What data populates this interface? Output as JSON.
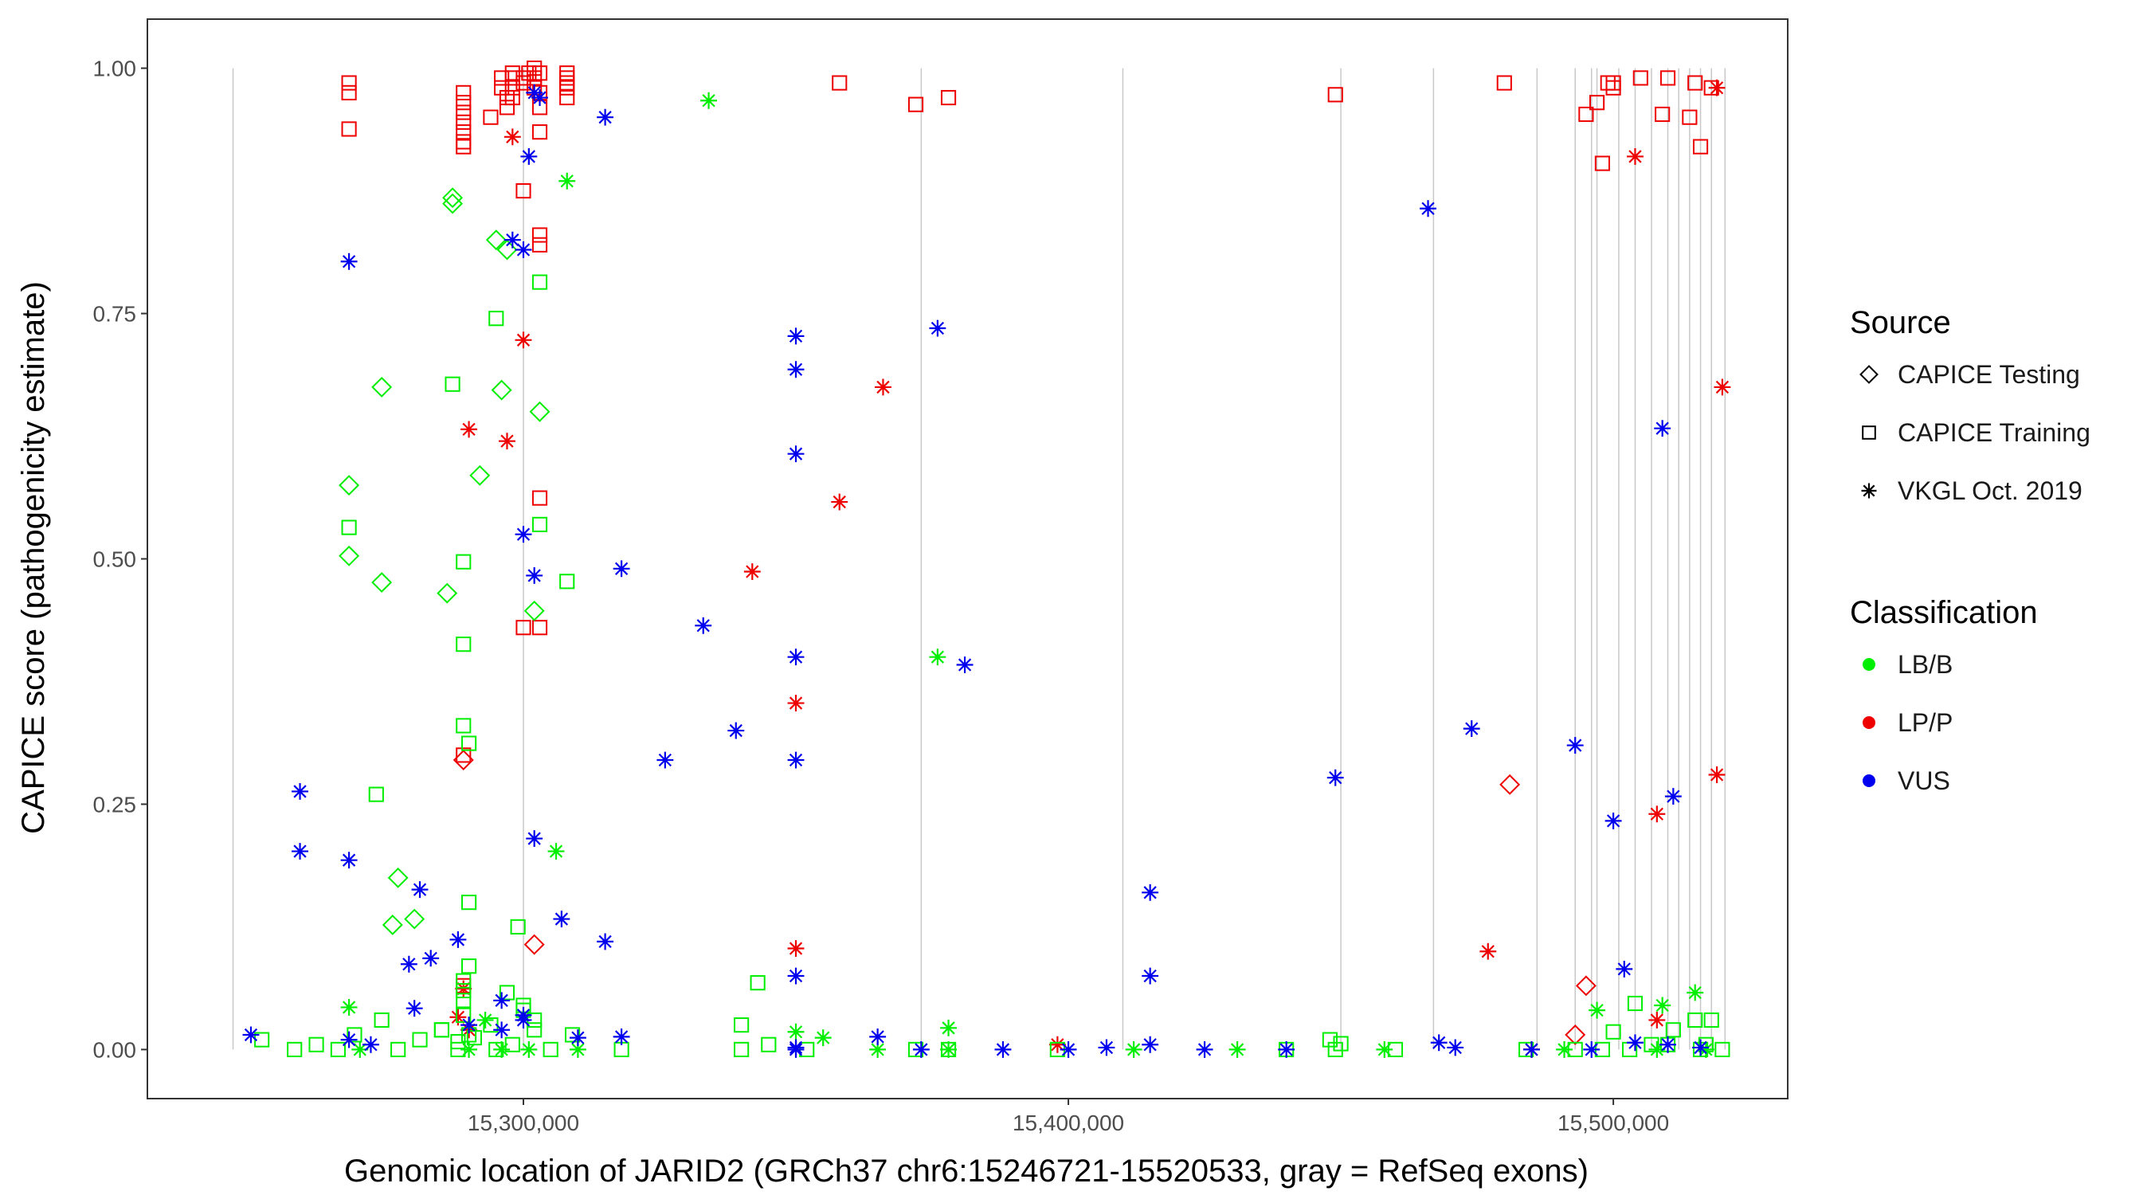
{
  "chart_data": {
    "type": "scatter",
    "title": "",
    "xlabel": "Genomic location of JARID2 (GRCh37 chr6:15246721-15520533, gray = RefSeq exons)",
    "ylabel": "CAPICE score (pathogenicity estimate)",
    "xlim": [
      15231000,
      15532000
    ],
    "ylim": [
      -0.05,
      1.05
    ],
    "x_ticks": [
      15300000,
      15400000,
      15500000
    ],
    "x_tick_labels": [
      "15,300,000",
      "15,400,000",
      "15,500,000"
    ],
    "y_ticks": [
      0,
      0.25,
      0.5,
      0.75,
      1.0
    ],
    "y_tick_labels": [
      "0.00",
      "0.25",
      "0.50",
      "0.75",
      "1.00"
    ],
    "exon_positions": [
      15246721,
      15300000,
      15373000,
      15410000,
      15450000,
      15467000,
      15486000,
      15493000,
      15496000,
      15497000,
      15501000,
      15504000,
      15507000,
      15510000,
      15512000,
      15514000,
      15516000,
      15518000,
      15520500
    ],
    "legend": {
      "source_title": "Source",
      "source_items": [
        {
          "label": "CAPICE Testing",
          "shape": "diamond"
        },
        {
          "label": "CAPICE Training",
          "shape": "square"
        },
        {
          "label": "VKGL Oct. 2019",
          "shape": "asterisk"
        }
      ],
      "class_title": "Classification",
      "class_items": [
        {
          "label": "LB/B",
          "color": "#00ee00"
        },
        {
          "label": "LP/P",
          "color": "#ee0000"
        },
        {
          "label": "VUS",
          "color": "#0000ee"
        }
      ]
    },
    "colors": {
      "LB/B": "#00ee00",
      "LP/P": "#ee0000",
      "VUS": "#0000ee"
    },
    "series": [
      {
        "name": "LP/P - CAPICE Training",
        "shape": "square",
        "cls": "LP/P",
        "x": [
          15268000,
          15268000,
          15268000,
          15289000,
          15289000,
          15289000,
          15289000,
          15289000,
          15289000,
          15289000,
          15294000,
          15296000,
          15296000,
          15297000,
          15297000,
          15298000,
          15298000,
          15298000,
          15300000,
          15300000,
          15301000,
          15302000,
          15302000,
          15302000,
          15303000,
          15303000,
          15303000,
          15308000,
          15308000,
          15308000,
          15308000,
          15308000,
          15358000,
          15372000,
          15378000,
          15449000,
          15480000,
          15495000,
          15497000,
          15498000,
          15499000,
          15500000,
          15500000,
          15505000,
          15509000,
          15510000,
          15514000,
          15515000,
          15516000,
          15518000,
          15298000,
          15300000,
          15303000,
          15303000,
          15303000,
          15300000,
          15303000,
          15289000,
          15303000,
          15289000
        ],
        "y": [
          0.985,
          0.975,
          0.938,
          0.975,
          0.965,
          0.955,
          0.945,
          0.935,
          0.925,
          0.92,
          0.95,
          0.99,
          0.98,
          0.97,
          0.96,
          0.995,
          0.99,
          0.98,
          0.99,
          0.985,
          0.995,
          1.0,
          0.99,
          0.98,
          0.995,
          0.975,
          0.96,
          0.995,
          0.99,
          0.985,
          0.98,
          0.97,
          0.985,
          0.963,
          0.97,
          0.973,
          0.985,
          0.953,
          0.965,
          0.903,
          0.985,
          0.985,
          0.98,
          0.99,
          0.953,
          0.99,
          0.95,
          0.985,
          0.92,
          0.98,
          0.97,
          0.875,
          0.935,
          0.83,
          0.82,
          0.43,
          0.43,
          0.3,
          0.562,
          0.065
        ]
      },
      {
        "name": "LP/P - CAPICE Testing",
        "shape": "diamond",
        "cls": "LP/P",
        "x": [
          15289000,
          15302000,
          15481000,
          15495000,
          15493000
        ],
        "y": [
          0.295,
          0.107,
          0.27,
          0.065,
          0.015
        ]
      },
      {
        "name": "LP/P - VKGL Oct. 2019",
        "shape": "asterisk",
        "cls": "LP/P",
        "x": [
          15298000,
          15300000,
          15290000,
          15297000,
          15288000,
          15289000,
          15342000,
          15350000,
          15350000,
          15358000,
          15366000,
          15398000,
          15504000,
          15520000,
          15519000,
          15508000,
          15519000,
          15477000,
          15485000,
          15508000,
          15290000
        ],
        "y": [
          0.93,
          0.723,
          0.632,
          0.62,
          0.033,
          0.062,
          0.487,
          0.353,
          0.103,
          0.558,
          0.675,
          0.005,
          0.91,
          0.675,
          0.28,
          0.03,
          0.98,
          0.1,
          0.0,
          0.24,
          0.02
        ]
      },
      {
        "name": "LB/B - CAPICE Training",
        "shape": "square",
        "cls": "LB/B",
        "x": [
          15268000,
          15273000,
          15287000,
          15289000,
          15289000,
          15289000,
          15290000,
          15290000,
          15295000,
          15299000,
          15300000,
          15303000,
          15303000,
          15308000,
          15290000,
          15289000,
          15289000,
          15289000,
          15294000,
          15297000,
          15300000,
          15302000,
          15288000,
          15290000,
          15285000,
          15289000,
          15340000,
          15343000,
          15450000,
          15448000,
          15449000,
          15500000,
          15504000,
          15507000,
          15511000,
          15515000,
          15517000,
          15518000,
          15252000,
          15258000,
          15262000,
          15266000,
          15269000,
          15274000,
          15277000,
          15281000,
          15285000,
          15288000,
          15291000,
          15295000,
          15298000,
          15302000,
          15305000,
          15309000,
          15318000,
          15340000,
          15345000,
          15352000,
          15372000,
          15378000,
          15398000,
          15440000,
          15460000,
          15484000,
          15493000,
          15498000,
          15503000,
          15510000,
          15516000,
          15520000
        ],
        "y": [
          0.532,
          0.26,
          0.678,
          0.497,
          0.413,
          0.33,
          0.312,
          0.15,
          0.745,
          0.125,
          0.04,
          0.535,
          0.782,
          0.477,
          0.085,
          0.07,
          0.06,
          0.05,
          0.025,
          0.058,
          0.045,
          0.03,
          0.008,
          0.015,
          0.02,
          0.035,
          0.025,
          0.068,
          0.006,
          0.01,
          0.0,
          0.018,
          0.047,
          0.005,
          0.02,
          0.03,
          0.005,
          0.03,
          0.01,
          0.0,
          0.005,
          0.0,
          0.015,
          0.03,
          0.0,
          0.01,
          0.02,
          0.0,
          0.012,
          0.0,
          0.005,
          0.02,
          0.0,
          0.015,
          0.0,
          0.0,
          0.005,
          0.0,
          0.0,
          0.0,
          0.0,
          0.0,
          0.0,
          0.0,
          0.0,
          0.0,
          0.0,
          0.005,
          0.0,
          0.0
        ]
      },
      {
        "name": "LB/B - CAPICE Testing",
        "shape": "diamond",
        "cls": "LB/B",
        "x": [
          15287000,
          15287000,
          15295000,
          15297000,
          15274000,
          15296000,
          15268000,
          15292000,
          15268000,
          15274000,
          15303000,
          15286000,
          15302000,
          15277000,
          15280000,
          15276000
        ],
        "y": [
          0.868,
          0.862,
          0.825,
          0.815,
          0.675,
          0.672,
          0.575,
          0.585,
          0.503,
          0.476,
          0.65,
          0.465,
          0.447,
          0.175,
          0.133,
          0.127
        ]
      },
      {
        "name": "LB/B - VKGL Oct. 2019",
        "shape": "asterisk",
        "cls": "LB/B",
        "x": [
          15334000,
          15308000,
          15306000,
          15376000,
          15268000,
          15350000,
          15378000,
          15293000,
          15497000,
          15515000,
          15509000,
          15355000,
          15290000,
          15301000,
          15310000,
          15365000,
          15378000,
          15412000,
          15431000,
          15458000,
          15491000,
          15508000,
          15517000,
          15270000,
          15296000
        ],
        "y": [
          0.967,
          0.885,
          0.202,
          0.4,
          0.043,
          0.018,
          0.022,
          0.03,
          0.04,
          0.058,
          0.045,
          0.012,
          0.0,
          0.0,
          0.0,
          0.0,
          0.0,
          0.0,
          0.0,
          0.0,
          0.0,
          0.0,
          0.0,
          0.0,
          0.0
        ]
      },
      {
        "name": "VUS - VKGL Oct. 2019",
        "shape": "asterisk",
        "cls": "VUS",
        "x": [
          15268000,
          15302000,
          15303000,
          15298000,
          15300000,
          15301000,
          15315000,
          15350000,
          15350000,
          15376000,
          15350000,
          15318000,
          15300000,
          15302000,
          15333000,
          15339000,
          15350000,
          15350000,
          15381000,
          15326000,
          15350000,
          15259000,
          15268000,
          15302000,
          15307000,
          15281000,
          15315000,
          15288000,
          15283000,
          15279000,
          15350000,
          15296000,
          15259000,
          15466000,
          15449000,
          15474000,
          15493000,
          15511000,
          15500000,
          15509000,
          15502000,
          15415000,
          15415000,
          15250000,
          15268000,
          15280000,
          15290000,
          15300000,
          15310000,
          15318000,
          15350000,
          15365000,
          15373000,
          15388000,
          15400000,
          15407000,
          15415000,
          15425000,
          15440000,
          15468000,
          15471000,
          15485000,
          15496000,
          15504000,
          15510000,
          15516000,
          15296000,
          15300000,
          15272000
        ],
        "y": [
          0.803,
          0.975,
          0.97,
          0.825,
          0.815,
          0.91,
          0.95,
          0.727,
          0.693,
          0.735,
          0.607,
          0.49,
          0.525,
          0.483,
          0.432,
          0.325,
          0.4,
          0.295,
          0.392,
          0.295,
          0.075,
          0.263,
          0.193,
          0.215,
          0.133,
          0.163,
          0.11,
          0.112,
          0.093,
          0.087,
          0.0,
          0.05,
          0.202,
          0.857,
          0.277,
          0.327,
          0.31,
          0.258,
          0.233,
          0.633,
          0.082,
          0.16,
          0.075,
          0.015,
          0.01,
          0.042,
          0.025,
          0.03,
          0.012,
          0.013,
          0.002,
          0.013,
          0.0,
          0.0,
          0.0,
          0.002,
          0.005,
          0.0,
          0.0,
          0.007,
          0.002,
          0.0,
          0.0,
          0.007,
          0.005,
          0.002,
          0.02,
          0.035,
          0.005
        ]
      }
    ]
  }
}
